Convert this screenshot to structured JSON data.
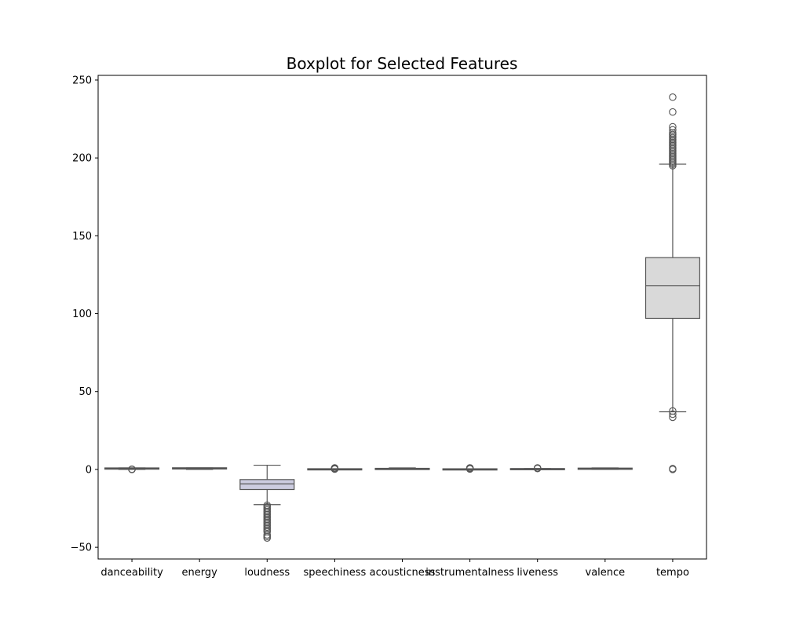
{
  "chart_data": {
    "type": "boxplot",
    "title": "Boxplot for Selected Features",
    "xlabel": "",
    "ylabel": "",
    "ylim": [
      -57.5,
      253
    ],
    "yticks": [
      -50,
      0,
      50,
      100,
      150,
      200,
      250
    ],
    "grid": false,
    "colors": {
      "box_edge": "#555555",
      "outlier_edge": "#555555",
      "tempo_fill": "#d9d9d9",
      "loudness_fill": "#cccce0",
      "default_fill": "#cfcfe0"
    },
    "categories": [
      "danceability",
      "energy",
      "loudness",
      "speechiness",
      "acousticness",
      "instrumentalness",
      "liveness",
      "valence",
      "tempo"
    ],
    "boxes": [
      {
        "label": "danceability",
        "whisker_low": 0.0,
        "q1": 0.45,
        "median": 0.58,
        "q3": 0.69,
        "whisker_high": 1.0,
        "outliers": [
          0.0,
          0.05,
          0.08,
          0.1
        ]
      },
      {
        "label": "energy",
        "whisker_low": 0.0,
        "q1": 0.48,
        "median": 0.68,
        "q3": 0.85,
        "whisker_high": 1.0,
        "outliers": []
      },
      {
        "label": "loudness",
        "whisker_low": -22.6,
        "q1": -12.9,
        "median": -9.3,
        "q3": -6.5,
        "whisker_high": 2.7,
        "outliers": [
          -23,
          -24,
          -25,
          -26,
          -27,
          -28,
          -29,
          -30,
          -31,
          -32,
          -33,
          -34,
          -35,
          -36,
          -37,
          -38,
          -39,
          -40,
          -42,
          -43,
          -44
        ]
      },
      {
        "label": "speechiness",
        "whisker_low": 0.0,
        "q1": 0.04,
        "median": 0.05,
        "q3": 0.09,
        "whisker_high": 0.16,
        "outliers": [
          0.2,
          0.4,
          0.6,
          0.8,
          1.0
        ]
      },
      {
        "label": "acousticness",
        "whisker_low": 0.0,
        "q1": 0.02,
        "median": 0.17,
        "q3": 0.6,
        "whisker_high": 1.0,
        "outliers": []
      },
      {
        "label": "instrumentalness",
        "whisker_low": 0.0,
        "q1": 0.0,
        "median": 0.0,
        "q3": 0.05,
        "whisker_high": 0.12,
        "outliers": [
          0.3,
          0.5,
          0.7,
          0.9,
          1.0
        ]
      },
      {
        "label": "liveness",
        "whisker_low": 0.0,
        "q1": 0.1,
        "median": 0.13,
        "q3": 0.27,
        "whisker_high": 0.52,
        "outliers": [
          0.6,
          0.8,
          1.0
        ]
      },
      {
        "label": "valence",
        "whisker_low": 0.0,
        "q1": 0.26,
        "median": 0.45,
        "q3": 0.65,
        "whisker_high": 1.0,
        "outliers": []
      },
      {
        "label": "tempo",
        "whisker_low": 37,
        "q1": 97,
        "median": 118,
        "q3": 136,
        "whisker_high": 196,
        "outliers": [
          0,
          0.5,
          33.5,
          35.5,
          37.5,
          195,
          196,
          197,
          198,
          199,
          200,
          201,
          202,
          203,
          204,
          205,
          206,
          207,
          208,
          209,
          210,
          211,
          212,
          213,
          214,
          215,
          216,
          218,
          220,
          229.5,
          239
        ]
      }
    ]
  }
}
